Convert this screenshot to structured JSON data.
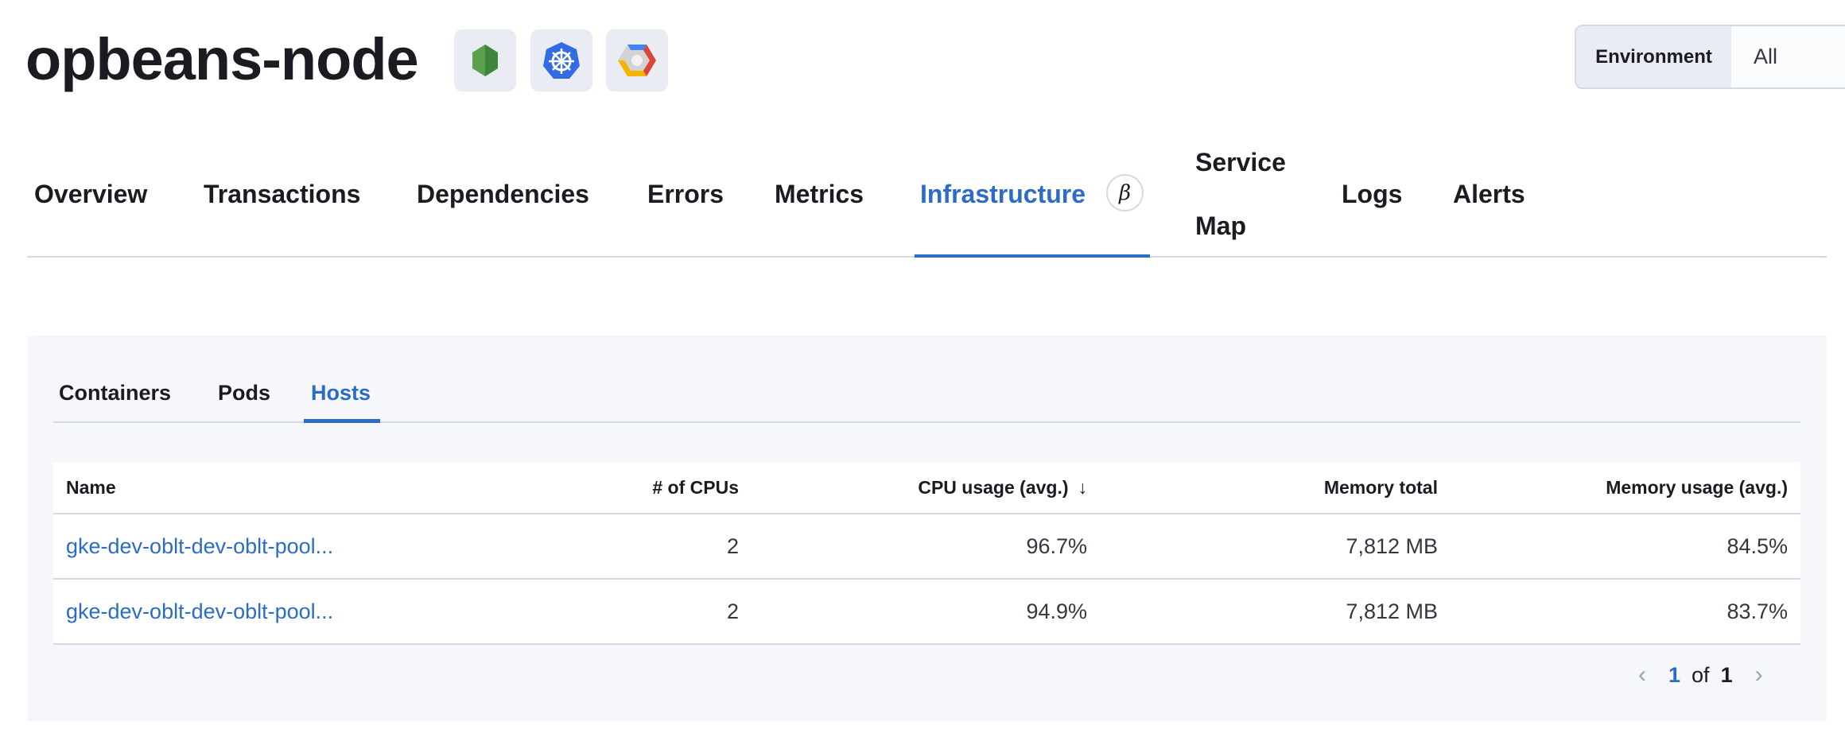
{
  "header": {
    "title": "opbeans-node",
    "icons": [
      "nodejs-icon",
      "kubernetes-icon",
      "google-cloud-icon"
    ],
    "environment": {
      "label": "Environment",
      "value": "All"
    }
  },
  "tabs": [
    {
      "label": "Overview"
    },
    {
      "label": "Transactions"
    },
    {
      "label": "Dependencies"
    },
    {
      "label": "Errors"
    },
    {
      "label": "Metrics"
    },
    {
      "label": "Infrastructure",
      "active": true,
      "badge": "β"
    },
    {
      "label_line1": "Service",
      "label_line2": "Map"
    },
    {
      "label": "Logs"
    },
    {
      "label": "Alerts"
    }
  ],
  "infrastructure": {
    "subtabs": [
      {
        "label": "Containers"
      },
      {
        "label": "Pods"
      },
      {
        "label": "Hosts",
        "active": true
      }
    ],
    "table": {
      "columns": [
        "Name",
        "# of CPUs",
        "CPU usage (avg.)",
        "Memory total",
        "Memory usage (avg.)"
      ],
      "sort_indicator": "↓",
      "rows": [
        [
          "gke-dev-oblt-dev-oblt-pool...",
          "2",
          "96.7%",
          "7,812 MB",
          "84.5%"
        ],
        [
          "gke-dev-oblt-dev-oblt-pool...",
          "2",
          "94.9%",
          "7,812 MB",
          "83.7%"
        ]
      ]
    },
    "pagination": {
      "current": "1",
      "of": "of",
      "total": "1"
    }
  },
  "colors": {
    "accent": "#2b6cc4",
    "panel_bg": "#f5f7fa",
    "border": "#d3dae6"
  }
}
